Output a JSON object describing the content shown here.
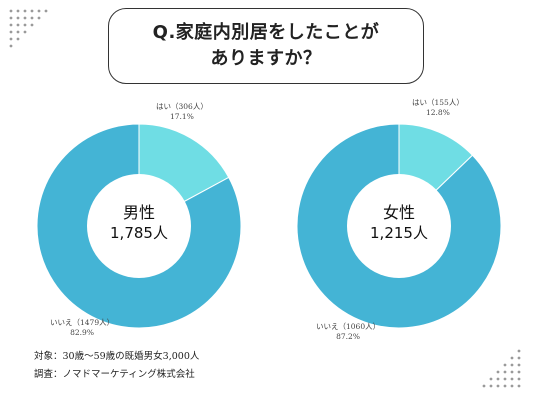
{
  "colors": {
    "yes": "#6fdde4",
    "no": "#44b4d5",
    "dots": "#9a9a9a"
  },
  "title": {
    "line1": "Q.家庭内別居をしたことが",
    "line2": "ありますか？"
  },
  "chart_data": [
    {
      "type": "pie",
      "center_label": "男性",
      "center_value": "1,785人",
      "slices": [
        {
          "label": "はい（306人）",
          "percent_label": "17.1%",
          "value": 17.1,
          "color": "#6fdde4"
        },
        {
          "label": "いいえ（1479人）",
          "percent_label": "82.9%",
          "value": 82.9,
          "color": "#44b4d5"
        }
      ]
    },
    {
      "type": "pie",
      "center_label": "女性",
      "center_value": "1,215人",
      "slices": [
        {
          "label": "はい（155人）",
          "percent_label": "12.8%",
          "value": 12.8,
          "color": "#6fdde4"
        },
        {
          "label": "いいえ（1060人）",
          "percent_label": "87.2%",
          "value": 87.2,
          "color": "#44b4d5"
        }
      ]
    }
  ],
  "footer": {
    "target": "対象：30歳～59歳の既婚男女3,000人",
    "survey": "調査：ノマドマーケティング株式会社"
  }
}
